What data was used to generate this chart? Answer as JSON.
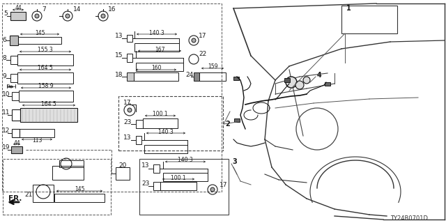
{
  "bg_color": "#ffffff",
  "diagram_id": "TY24B0701D",
  "fig_width": 6.4,
  "fig_height": 3.2,
  "dpi": 100,
  "lc": "#1a1a1a",
  "tc": "#1a1a1a"
}
